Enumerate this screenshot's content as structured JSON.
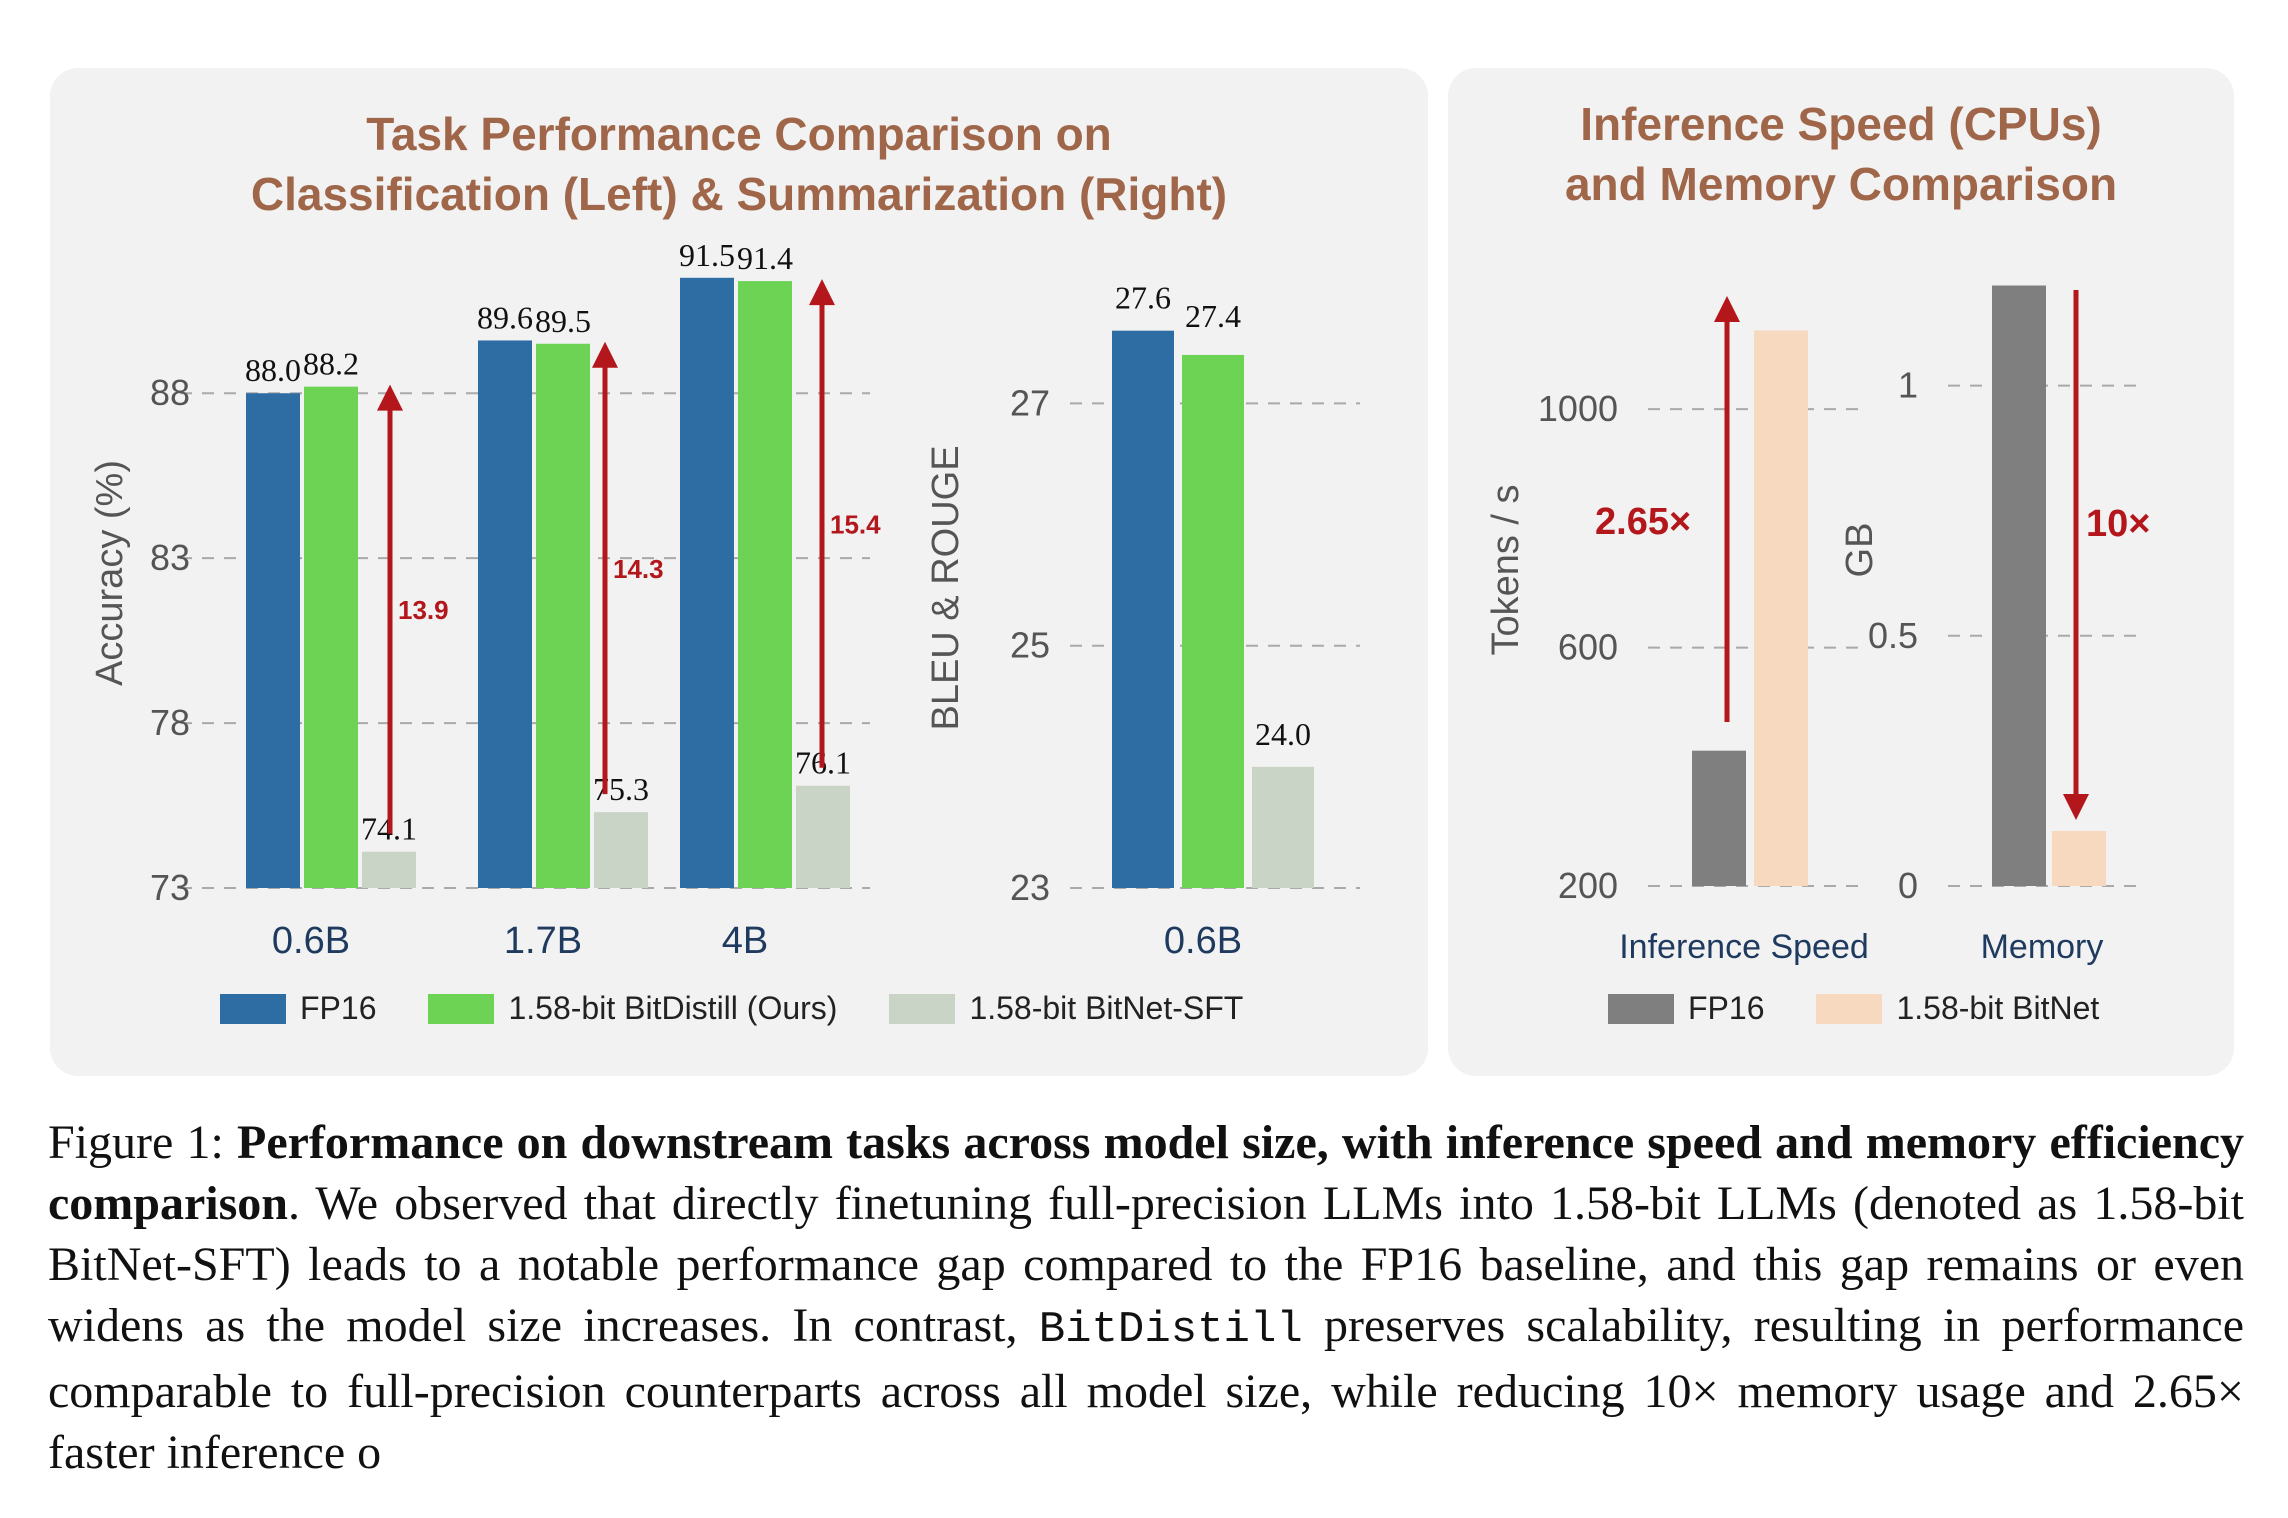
{
  "chart_data": [
    {
      "type": "bar",
      "title": "Task Performance Comparison on Classification (Left) & Summarization (Right)",
      "title_lines": [
        "Task Performance Comparison on",
        "Classification (Left) & Summarization (Right)"
      ],
      "subplots": [
        {
          "name": "classification",
          "ylabel": "Accuracy (%)",
          "ylim": [
            73,
            93
          ],
          "yticks": [
            73,
            78,
            83,
            88
          ],
          "categories": [
            "0.6B",
            "1.7B",
            "4B"
          ],
          "series": [
            {
              "name": "FP16",
              "values": [
                88.0,
                89.6,
                91.5
              ],
              "labels": [
                "88.0",
                "89.6",
                "91.5"
              ]
            },
            {
              "name": "1.58-bit BitDistill (Ours)",
              "values": [
                88.2,
                89.5,
                91.4
              ],
              "labels": [
                "88.2",
                "89.5",
                "91.4"
              ]
            },
            {
              "name": "1.58-bit BitNet-SFT",
              "values": [
                74.1,
                75.3,
                76.1
              ],
              "labels": [
                "74.1",
                "75.3",
                "76.1"
              ]
            }
          ],
          "annotations": [
            {
              "label": "13.9",
              "from": 74.1,
              "to": 88.2,
              "category": "0.6B"
            },
            {
              "label": "14.3",
              "from": 75.3,
              "to": 89.5,
              "category": "1.7B"
            },
            {
              "label": "15.4",
              "from": 76.1,
              "to": 91.4,
              "category": "4B"
            }
          ],
          "grid": true
        },
        {
          "name": "summarization",
          "ylabel": "BLEU & ROUGE",
          "ylim": [
            23,
            28
          ],
          "yticks": [
            23,
            25,
            27
          ],
          "categories": [
            "0.6B"
          ],
          "series": [
            {
              "name": "FP16",
              "values": [
                27.6
              ],
              "labels": [
                "27.6"
              ]
            },
            {
              "name": "1.58-bit BitDistill (Ours)",
              "values": [
                27.4
              ],
              "labels": [
                "27.4"
              ]
            },
            {
              "name": "1.58-bit BitNet-SFT",
              "values": [
                24.0
              ],
              "labels": [
                "24.0"
              ]
            }
          ],
          "grid": true
        }
      ],
      "legend": {
        "placement": "bottom",
        "entries": [
          {
            "name": "FP16",
            "color": "#2e6da4"
          },
          {
            "name": "1.58-bit BitDistill (Ours)",
            "color": "#6cd354"
          },
          {
            "name": "1.58-bit BitNet-SFT",
            "color": "#c9d3c6"
          }
        ]
      }
    },
    {
      "type": "bar",
      "title": "Inference Speed (CPUs) and Memory Comparison",
      "title_lines": [
        "Inference Speed (CPUs)",
        "and Memory Comparison"
      ],
      "subplots": [
        {
          "name": "speed",
          "xlabel": "Inference Speed",
          "ylabel": "Tokens / s",
          "ylim": [
            200,
            1200
          ],
          "yticks": [
            200,
            600,
            1000
          ],
          "series": [
            {
              "name": "FP16",
              "values": [
                427
              ]
            },
            {
              "name": "1.58-bit BitNet",
              "values": [
                1132
              ]
            }
          ],
          "annotations": [
            {
              "label": "2.65×",
              "direction": "up"
            }
          ],
          "grid": true
        },
        {
          "name": "memory",
          "xlabel": "Memory",
          "ylabel": "GB",
          "ylim": [
            0,
            1.2
          ],
          "yticks": [
            "0",
            "0.5",
            "1"
          ],
          "series": [
            {
              "name": "FP16",
              "values": [
                1.2
              ]
            },
            {
              "name": "1.58-bit BitNet",
              "values": [
                0.11
              ]
            }
          ],
          "annotations": [
            {
              "label": "10×",
              "direction": "down"
            }
          ],
          "grid": true
        }
      ],
      "legend": {
        "placement": "bottom",
        "entries": [
          {
            "name": "FP16",
            "color": "#7f7f7f"
          },
          {
            "name": "1.58-bit BitNet",
            "color": "#f7d9c0"
          }
        ]
      }
    }
  ],
  "colors": {
    "title": "#a0664a",
    "arrow": "#b3161b",
    "axis_text": "#555555",
    "category_text": "#1f3a5f",
    "fp16_blue": "#2e6da4",
    "bitdistill_green": "#6cd354",
    "bitnet_sft_gray": "#c9d3c6",
    "fp16_gray": "#7f7f7f",
    "bitnet_peach": "#f7d9c0"
  },
  "caption": {
    "prefix": "Figure 1: ",
    "bold": "Performance on downstream tasks across model size, with inference speed and memory efficiency comparison",
    "text1": ". We observed that directly finetuning full-precision LLMs into 1.58-bit LLMs (denoted as 1.58-bit BitNet-SFT) leads to a notable performance gap compared to the FP16 baseline, and this gap remains or even widens as the model size increases. In contrast, ",
    "mono": "BitDistill",
    "text2": " preserves scalability, resulting in performance comparable to full-precision counterparts across all model size, while reducing 10× memory usage and 2.65× faster inference o"
  }
}
